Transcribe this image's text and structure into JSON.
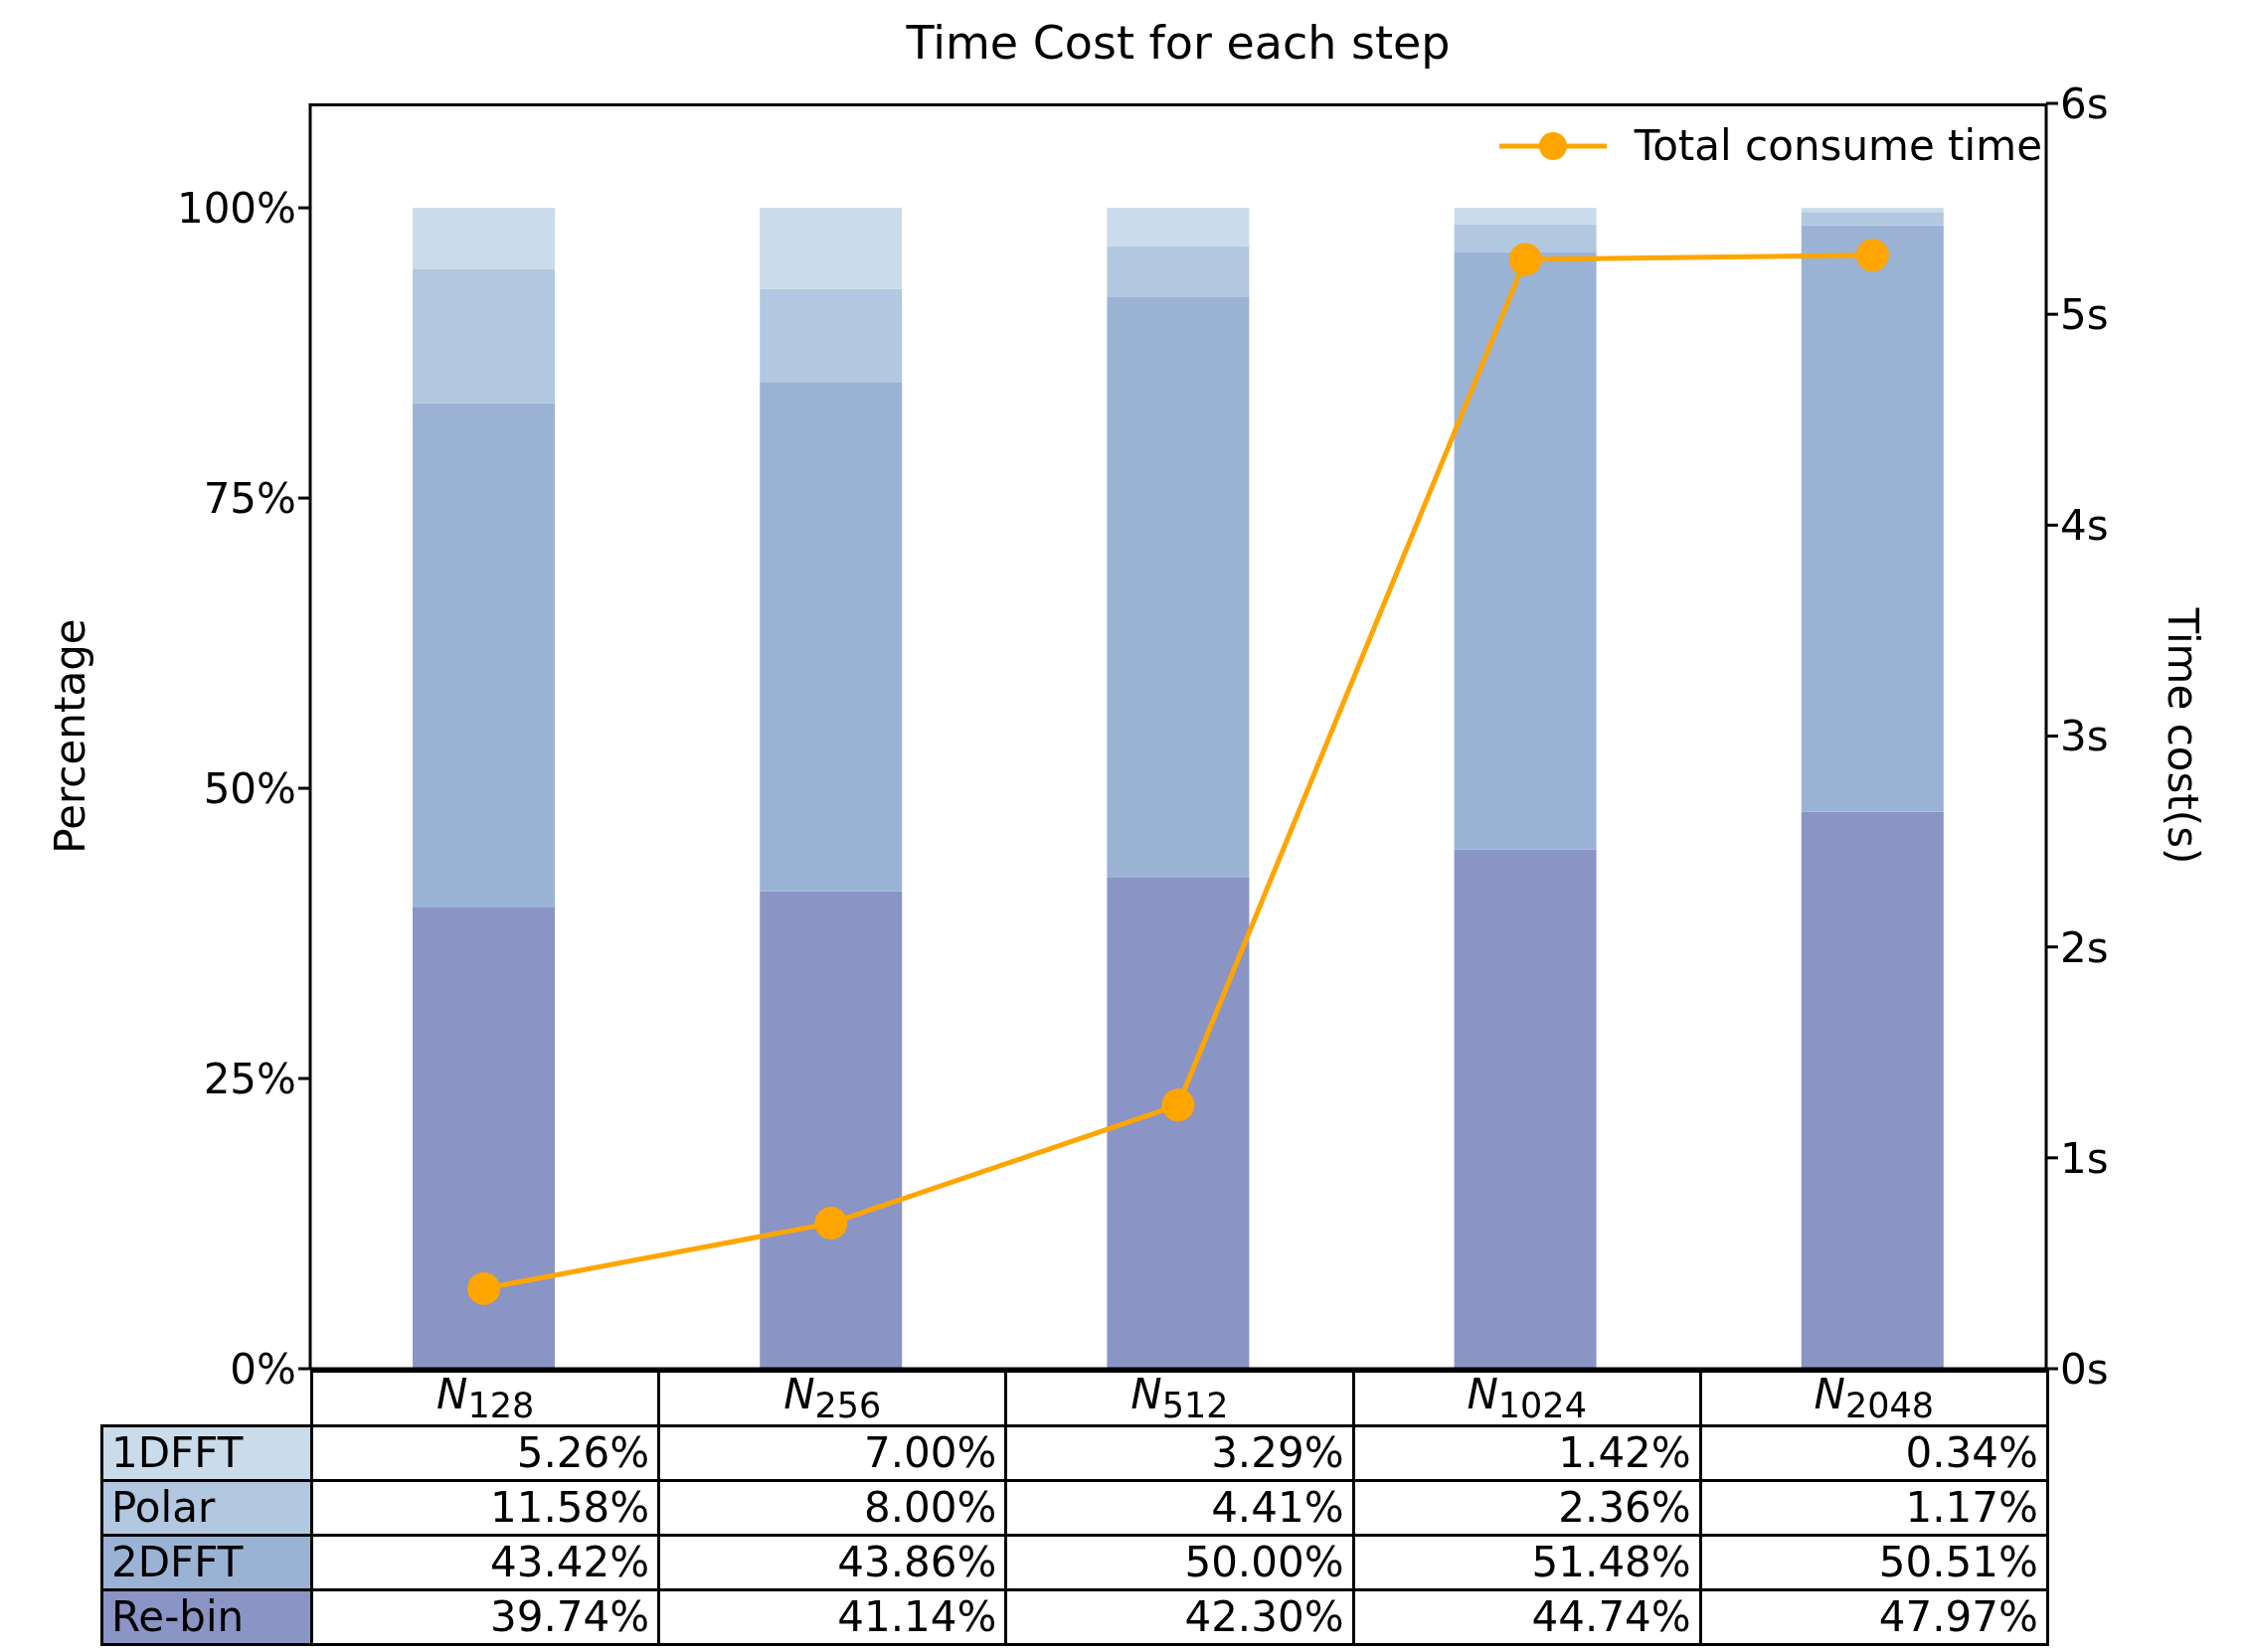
{
  "chart_data": {
    "type": "bar",
    "title": "Time Cost for each step",
    "ylabel": "Percentage",
    "y2label": "Time cost(s)",
    "categories": [
      "N$_{128}$",
      "N$_{256}$",
      "N$_{512}$",
      "N$_{1024}$",
      "N$_{2048}$"
    ],
    "stacked": true,
    "legend": "top right",
    "series": [
      {
        "name": "Re-bin",
        "color": "#8a94c5",
        "values": [
          39.74,
          41.14,
          42.3,
          44.74,
          47.97
        ],
        "value_labels": [
          "39.74%",
          "41.14%",
          "42.30%",
          "44.74%",
          "47.97%"
        ]
      },
      {
        "name": "2DFFT",
        "color": "#9ab3d5",
        "values": [
          43.42,
          43.86,
          50.0,
          51.48,
          50.51
        ],
        "value_labels": [
          "43.42%",
          "43.86%",
          "50.00%",
          "51.48%",
          "50.51%"
        ]
      },
      {
        "name": "Polar",
        "color": "#b1c8e0",
        "values": [
          11.58,
          8.0,
          4.41,
          2.36,
          1.17
        ],
        "value_labels": [
          "11.58%",
          "8.00%",
          "4.41%",
          "2.36%",
          "1.17%"
        ]
      },
      {
        "name": "1DFFT",
        "color": "#cadbea",
        "values": [
          5.26,
          7.0,
          3.29,
          1.42,
          0.34
        ],
        "value_labels": [
          "5.26%",
          "7.00%",
          "3.29%",
          "1.42%",
          "0.34%"
        ]
      },
      {
        "name": "Total consume time",
        "type": "line",
        "axis": "y2",
        "color": "#ffa500",
        "marker": "circle",
        "values": [
          0.38,
          0.69,
          1.25,
          5.26,
          5.28
        ]
      }
    ],
    "ylim": [
      0,
      109
    ],
    "yticks": [
      {
        "value": 0,
        "label": "0%"
      },
      {
        "value": 25,
        "label": "25%"
      },
      {
        "value": 50,
        "label": "50%"
      },
      {
        "value": 75,
        "label": "75%"
      },
      {
        "value": 100,
        "label": "100%"
      }
    ],
    "y2lim": [
      0,
      6
    ],
    "y2ticks": [
      {
        "value": 0,
        "label": "0s"
      },
      {
        "value": 1,
        "label": "1s"
      },
      {
        "value": 2,
        "label": "2s"
      },
      {
        "value": 3,
        "label": "3s"
      },
      {
        "value": 4,
        "label": "4s"
      },
      {
        "value": 5,
        "label": "5s"
      },
      {
        "value": 6,
        "label": "6s"
      }
    ]
  }
}
